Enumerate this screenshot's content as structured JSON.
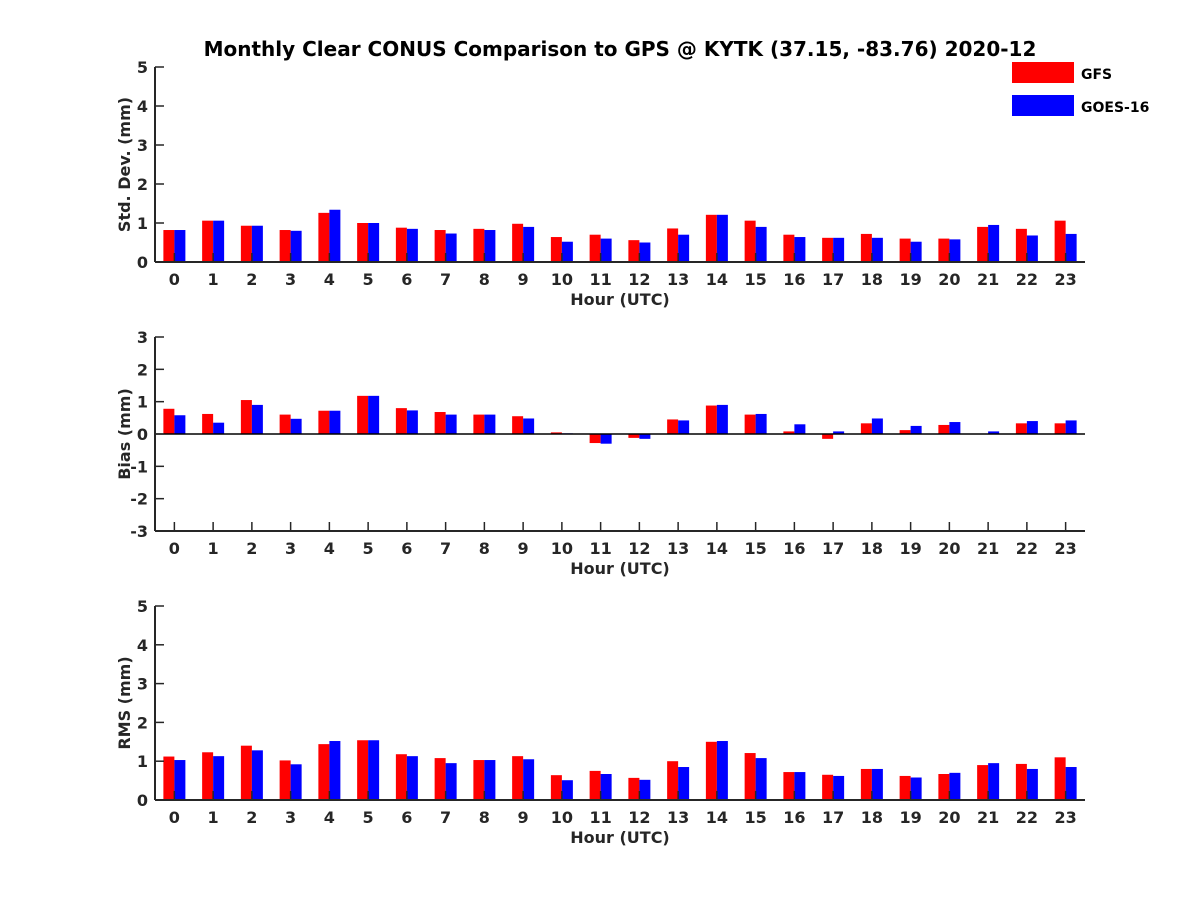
{
  "title": "Monthly Clear CONUS Comparison to GPS @ KYTK (37.15, -83.76) 2020-12",
  "legend": {
    "placement": "top-right",
    "items": [
      {
        "name": "GFS",
        "color": "#ff0000"
      },
      {
        "name": "GOES-16",
        "color": "#0000ff"
      }
    ]
  },
  "chart_data": [
    {
      "type": "bar",
      "xlabel": "Hour (UTC)",
      "ylabel": "Std. Dev. (mm)",
      "ylim": [
        0,
        5
      ],
      "yticks": [
        0,
        1,
        2,
        3,
        4,
        5
      ],
      "categories": [
        "0",
        "1",
        "2",
        "3",
        "4",
        "5",
        "6",
        "7",
        "8",
        "9",
        "10",
        "11",
        "12",
        "13",
        "14",
        "15",
        "16",
        "17",
        "18",
        "19",
        "20",
        "21",
        "22",
        "23"
      ],
      "series": [
        {
          "name": "GFS",
          "color": "#ff0000",
          "values": [
            0.82,
            1.06,
            0.93,
            0.82,
            1.26,
            1.0,
            0.88,
            0.82,
            0.85,
            0.98,
            0.64,
            0.7,
            0.56,
            0.86,
            1.21,
            1.06,
            0.7,
            0.62,
            0.72,
            0.6,
            0.6,
            0.9,
            0.85,
            1.06
          ]
        },
        {
          "name": "GOES-16",
          "color": "#0000ff",
          "values": [
            0.82,
            1.06,
            0.93,
            0.8,
            1.34,
            1.0,
            0.85,
            0.73,
            0.82,
            0.9,
            0.52,
            0.6,
            0.5,
            0.7,
            1.21,
            0.9,
            0.64,
            0.62,
            0.62,
            0.52,
            0.58,
            0.95,
            0.68,
            0.72
          ]
        }
      ]
    },
    {
      "type": "bar",
      "xlabel": "Hour (UTC)",
      "ylabel": "Bias (mm)",
      "ylim": [
        -3,
        3
      ],
      "yticks": [
        -3,
        -2,
        -1,
        0,
        1,
        2,
        3
      ],
      "categories": [
        "0",
        "1",
        "2",
        "3",
        "4",
        "5",
        "6",
        "7",
        "8",
        "9",
        "10",
        "11",
        "12",
        "13",
        "14",
        "15",
        "16",
        "17",
        "18",
        "19",
        "20",
        "21",
        "22",
        "23"
      ],
      "series": [
        {
          "name": "GFS",
          "color": "#ff0000",
          "values": [
            0.78,
            0.62,
            1.05,
            0.6,
            0.72,
            1.18,
            0.8,
            0.68,
            0.6,
            0.55,
            0.05,
            -0.28,
            -0.12,
            0.45,
            0.88,
            0.6,
            0.08,
            -0.15,
            0.33,
            0.12,
            0.28,
            0.0,
            0.33,
            0.33
          ]
        },
        {
          "name": "GOES-16",
          "color": "#0000ff",
          "values": [
            0.58,
            0.35,
            0.9,
            0.47,
            0.72,
            1.18,
            0.73,
            0.6,
            0.6,
            0.48,
            0.02,
            -0.3,
            -0.15,
            0.42,
            0.9,
            0.62,
            0.3,
            0.08,
            0.48,
            0.25,
            0.37,
            0.08,
            0.4,
            0.42
          ]
        }
      ]
    },
    {
      "type": "bar",
      "xlabel": "Hour (UTC)",
      "ylabel": "RMS (mm)",
      "ylim": [
        0,
        5
      ],
      "yticks": [
        0,
        1,
        2,
        3,
        4,
        5
      ],
      "categories": [
        "0",
        "1",
        "2",
        "3",
        "4",
        "5",
        "6",
        "7",
        "8",
        "9",
        "10",
        "11",
        "12",
        "13",
        "14",
        "15",
        "16",
        "17",
        "18",
        "19",
        "20",
        "21",
        "22",
        "23"
      ],
      "series": [
        {
          "name": "GFS",
          "color": "#ff0000",
          "values": [
            1.12,
            1.23,
            1.4,
            1.02,
            1.44,
            1.54,
            1.18,
            1.08,
            1.03,
            1.13,
            0.64,
            0.75,
            0.57,
            1.0,
            1.5,
            1.21,
            0.72,
            0.65,
            0.8,
            0.62,
            0.67,
            0.9,
            0.93,
            1.1
          ]
        },
        {
          "name": "GOES-16",
          "color": "#0000ff",
          "values": [
            1.03,
            1.13,
            1.28,
            0.92,
            1.52,
            1.54,
            1.13,
            0.95,
            1.03,
            1.05,
            0.51,
            0.67,
            0.52,
            0.85,
            1.52,
            1.08,
            0.72,
            0.62,
            0.8,
            0.58,
            0.7,
            0.95,
            0.8,
            0.85
          ]
        }
      ]
    }
  ]
}
